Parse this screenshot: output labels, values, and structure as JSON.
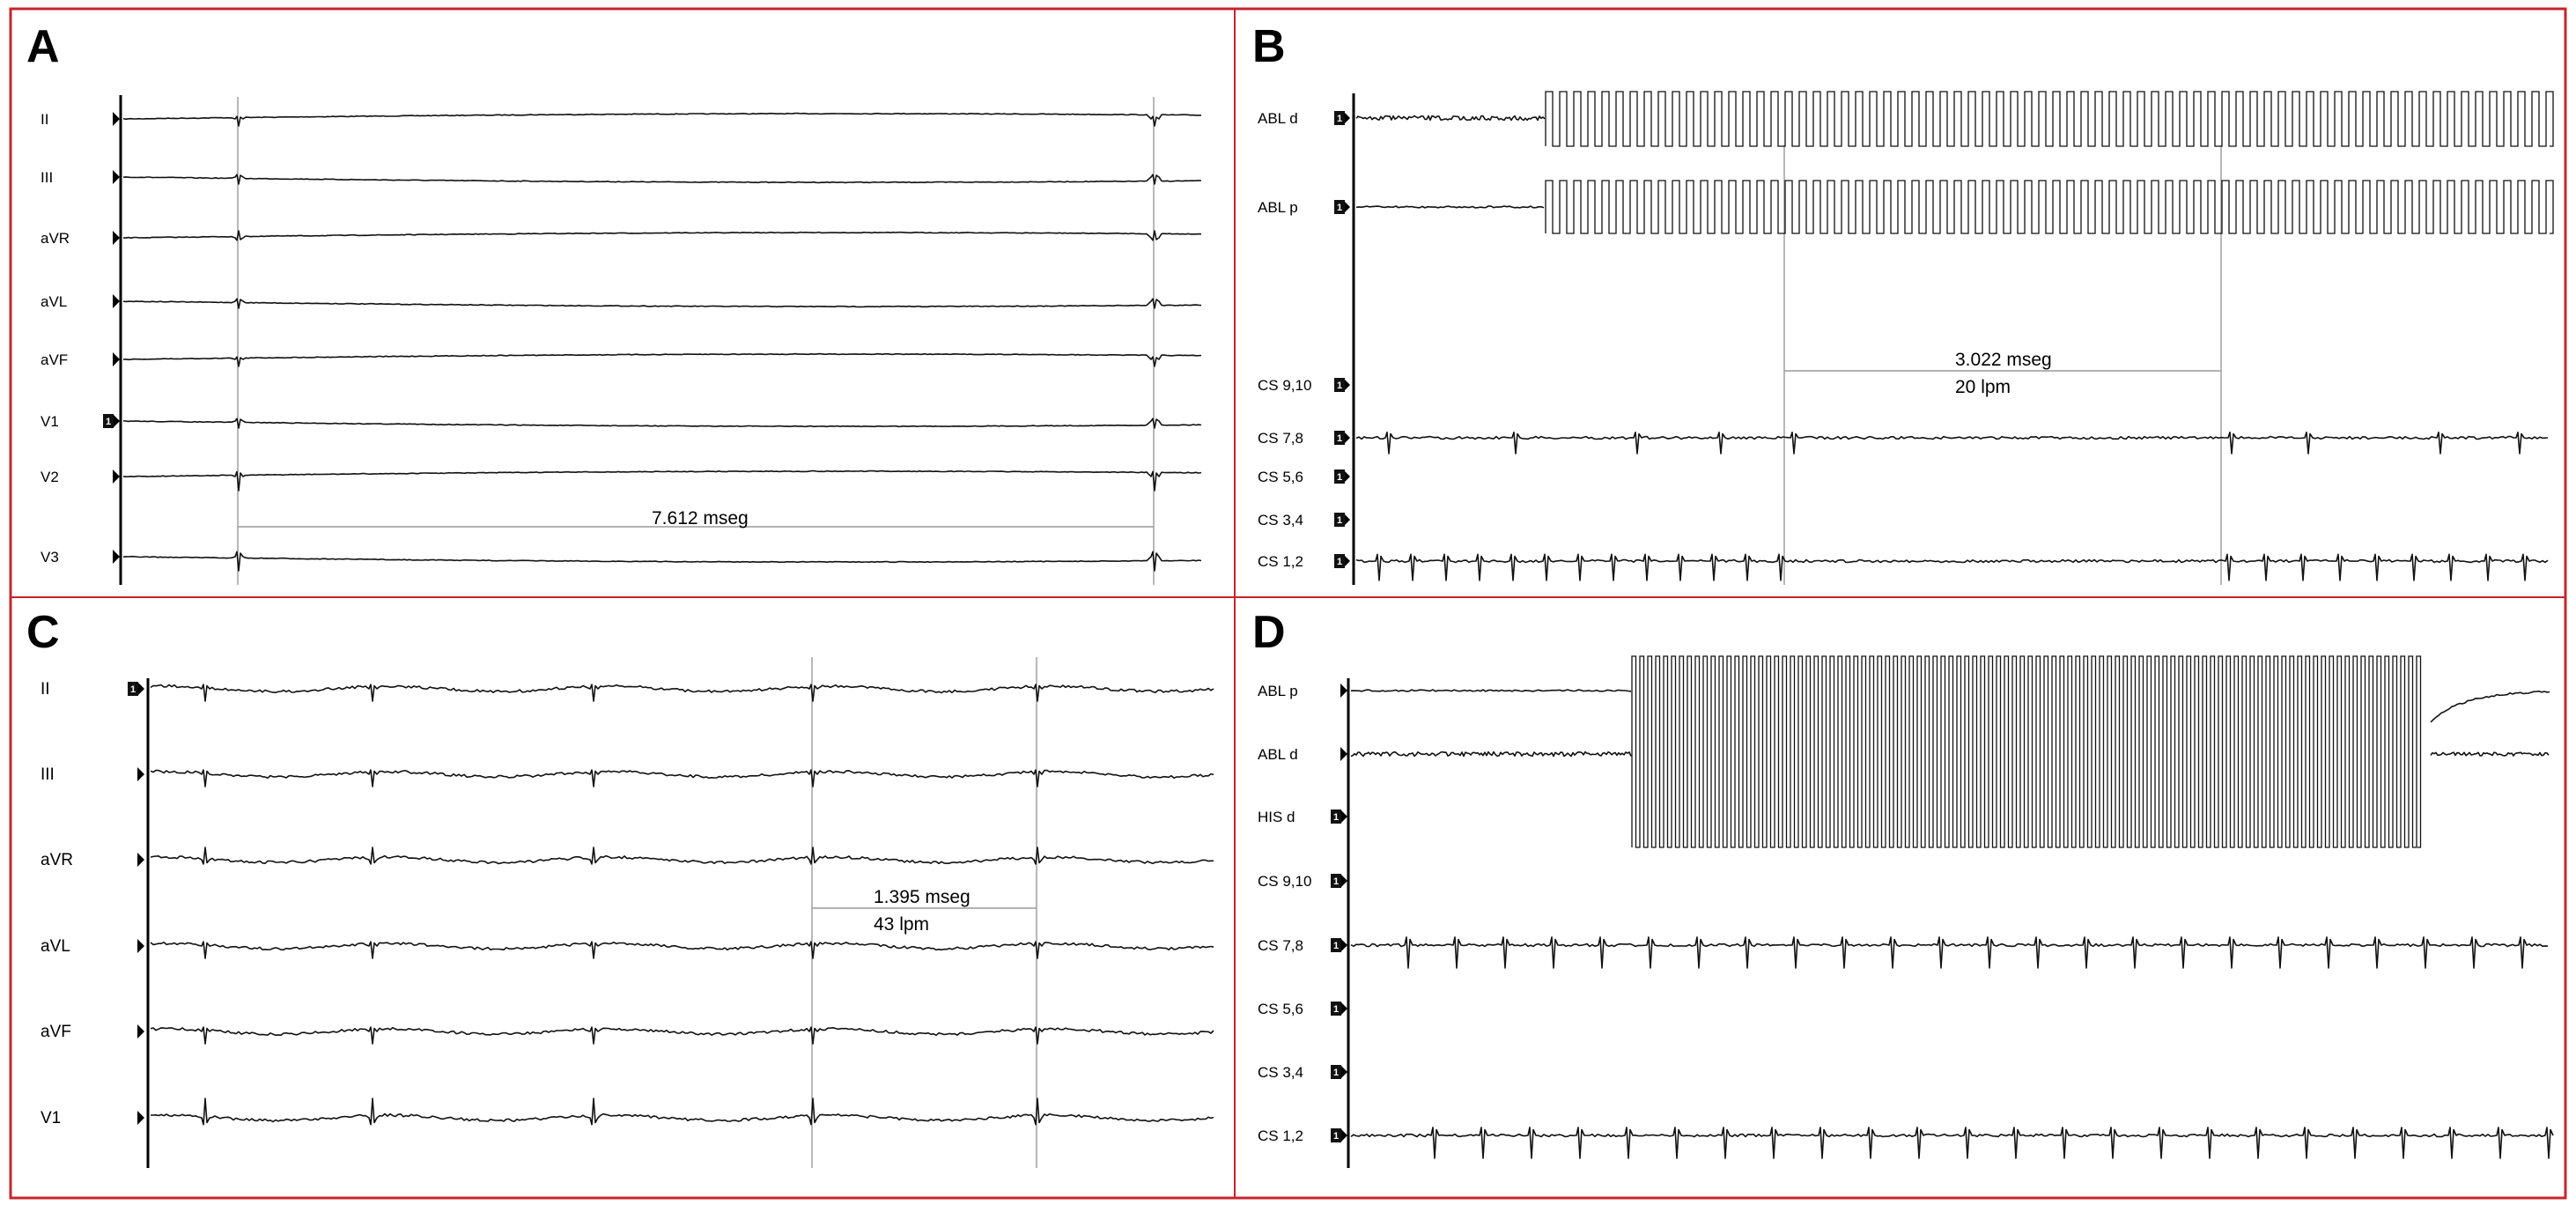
{
  "panels": {
    "A": {
      "label": "A",
      "leads": [
        "II",
        "III",
        "aVR",
        "aVL",
        "aVF",
        "V1",
        "V2",
        "V3"
      ],
      "measurement": "7.612 mseg"
    },
    "B": {
      "label": "B",
      "leads": [
        "ABL d",
        "ABL p",
        "CS 9,10",
        "CS 7,8",
        "CS 5,6",
        "CS 3,4",
        "CS 1,2"
      ],
      "measurement": "3.022 mseg",
      "rate": "20 lpm"
    },
    "C": {
      "label": "C",
      "leads": [
        "II",
        "III",
        "aVR",
        "aVL",
        "aVF",
        "V1"
      ],
      "measurement": "1.395 mseg",
      "rate": "43 lpm"
    },
    "D": {
      "label": "D",
      "leads": [
        "ABL p",
        "ABL d",
        "HIS d",
        "CS 9,10",
        "CS 7,8",
        "CS 5,6",
        "CS 3,4",
        "CS 1,2"
      ]
    }
  },
  "colors": {
    "border": "#c8242b",
    "trace": "#111111",
    "cursor": "#9a9a9a"
  }
}
